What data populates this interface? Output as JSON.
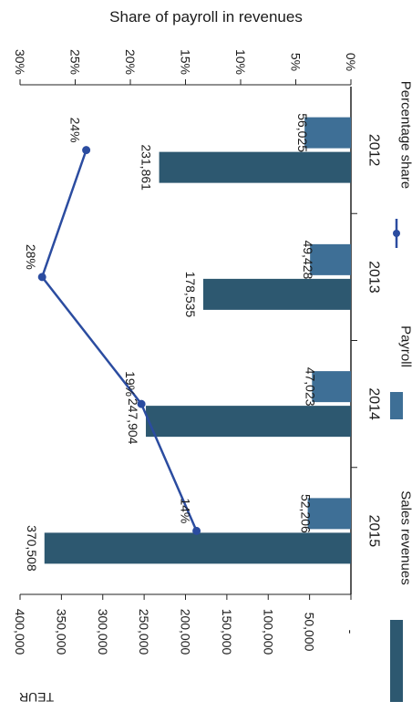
{
  "chart_data": {
    "type": "bar",
    "title": "Share of payroll in revenues",
    "ylabel": "TEUR",
    "categories": [
      "2012",
      "2013",
      "2014",
      "2015"
    ],
    "series": [
      {
        "name": "Sales revenues",
        "values": [
          231861,
          178535,
          247904,
          370508
        ],
        "labels": [
          "231,861",
          "178,535",
          "247,904",
          "370,508"
        ]
      },
      {
        "name": "Payroll",
        "values": [
          56025,
          49428,
          47023,
          52206
        ],
        "labels": [
          "56,025",
          "49,428",
          "47,023",
          "52,206"
        ]
      },
      {
        "name": "Percentage share",
        "type": "line",
        "axis": "secondary",
        "values": [
          24,
          28,
          19,
          14
        ],
        "labels": [
          "24%",
          "28%",
          "19%",
          "14%"
        ]
      }
    ],
    "primary_axis": {
      "range": [
        0,
        400000
      ],
      "ticks": [
        "-",
        "50,000",
        "100,000",
        "150,000",
        "200,000",
        "250,000",
        "300,000",
        "350,000",
        "400,000"
      ]
    },
    "secondary_axis": {
      "range": [
        0,
        30
      ],
      "ticks": [
        "0%",
        "5%",
        "10%",
        "15%",
        "20%",
        "25%",
        "30%"
      ]
    },
    "legend_position": "bottom",
    "orientation": "rotated 90 degrees clockwise",
    "colors": {
      "sales": "#2d5870",
      "payroll": "#3e6f96",
      "line": "#2b4ca0",
      "axis": "#222222"
    }
  }
}
